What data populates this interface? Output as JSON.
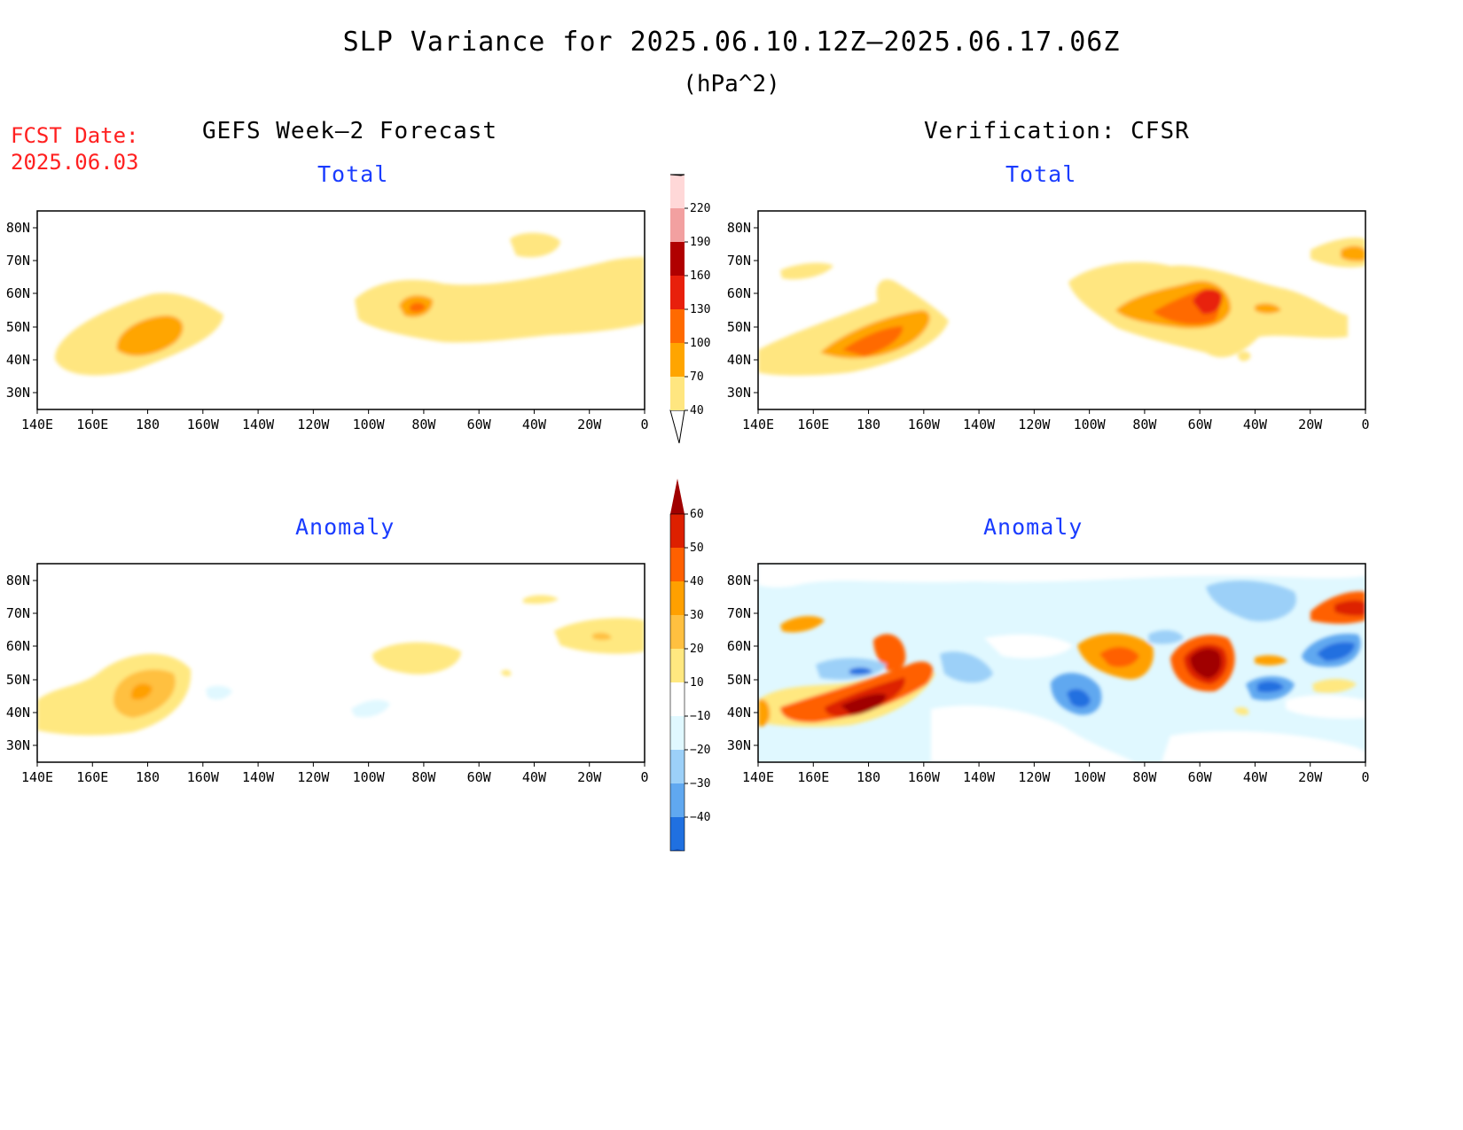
{
  "title": "SLP Variance for 2025.06.10.12Z–2025.06.17.06Z",
  "units": "(hPa^2)",
  "fcst_date": {
    "label": "FCST Date:",
    "value": "2025.06.03"
  },
  "columns": {
    "left": "GEFS Week–2 Forecast",
    "right": "Verification: CFSR"
  },
  "panel_titles": {
    "forecast_total": "Total",
    "verification_total": "Total",
    "forecast_anomaly": "Anomaly",
    "verification_anomaly": "Anomaly"
  },
  "lat_labels": [
    "80N",
    "70N",
    "60N",
    "50N",
    "40N",
    "30N"
  ],
  "lon_labels": [
    "140E",
    "160E",
    "180",
    "160W",
    "140W",
    "120W",
    "100W",
    "80W",
    "60W",
    "40W",
    "20W",
    "0"
  ],
  "colorbar_total": {
    "levels": [
      "40",
      "70",
      "100",
      "130",
      "160",
      "190",
      "220"
    ],
    "colors": [
      "#ffe680",
      "#ffa500",
      "#ff6a00",
      "#e8200c",
      "#b00000",
      "#f2a0a0",
      "#ffd8d8"
    ]
  },
  "colorbar_anomaly": {
    "levels": [
      "60",
      "50",
      "40",
      "30",
      "20",
      "10",
      "−10",
      "−20",
      "−30",
      "−40"
    ],
    "colors_positive": [
      "#a00000",
      "#dd2000",
      "#ff6000",
      "#ffa000",
      "#ffc040",
      "#ffe880"
    ],
    "colors_negative": [
      "#e0f8ff",
      "#9cd0f8",
      "#60a8f0",
      "#2070e0",
      "#1050c0"
    ]
  }
}
